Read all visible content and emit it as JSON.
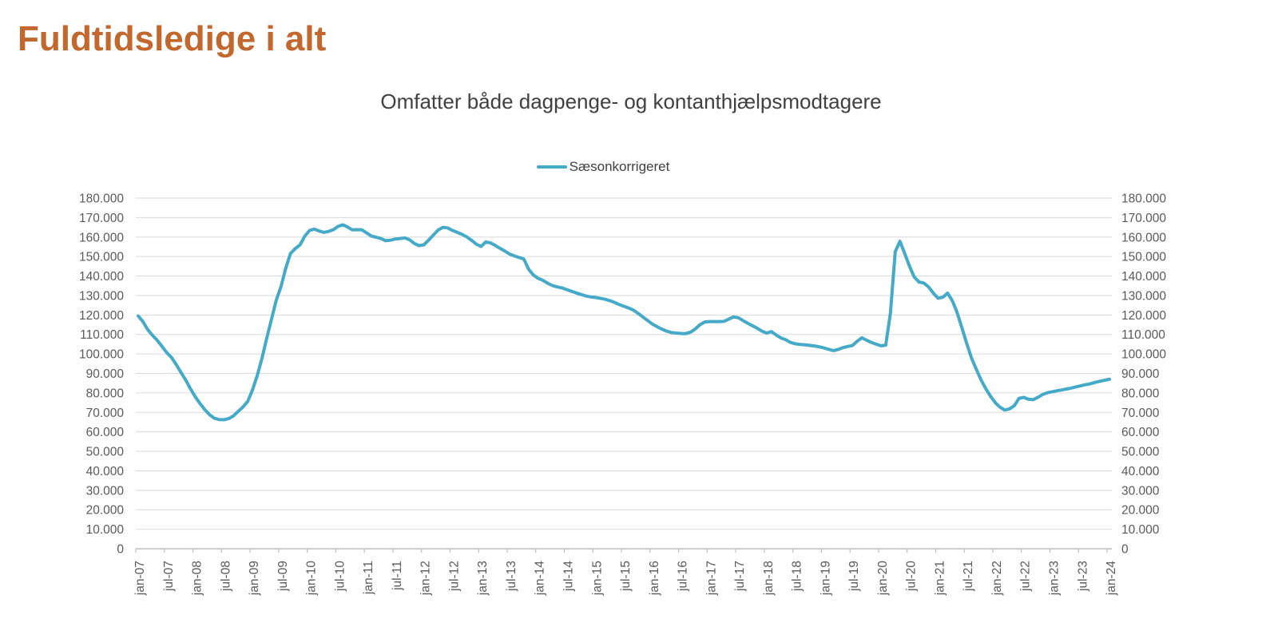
{
  "header": {
    "title": "Fuldtidsledige i alt",
    "title_color": "#C2672D"
  },
  "chart": {
    "title": "Omfatter både dagpenge- og kontanthjælpsmodtagere",
    "legend": {
      "label": "Sæsonkorrigeret",
      "marker": "line"
    },
    "colors": {
      "series": "#45A9C8",
      "gridline": "#D9D9D9",
      "axis": "#BFBFBF",
      "tick_label": "#595959",
      "title_text": "#404040"
    }
  },
  "chart_data": {
    "type": "line",
    "title": "Omfatter både dagpenge- og kontanthjælpsmodtagere",
    "ylabel": "",
    "xlabel": "",
    "ylim": [
      0,
      180000
    ],
    "grid": "horizontal",
    "legend_position": "top-center",
    "y_axis_sides": "both",
    "x_tick_labels": [
      "jan-07",
      "jul-07",
      "jan-08",
      "jul-08",
      "jan-09",
      "jul-09",
      "jan-10",
      "jul-10",
      "jan-11",
      "jul-11",
      "jan-12",
      "jul-12",
      "jan-13",
      "jul-13",
      "jan-14",
      "jul-14",
      "jan-15",
      "jul-15",
      "jan-16",
      "jul-16",
      "jan-17",
      "jul-17",
      "jan-18",
      "jul-18",
      "jan-19",
      "jul-19",
      "jan-20",
      "jul-20",
      "jan-21",
      "jul-21",
      "jan-22",
      "jul-22",
      "jan-23",
      "jul-23",
      "jan-24"
    ],
    "x_label_interval_months": 6,
    "y_ticks": [
      {
        "value": 0,
        "label": "0"
      },
      {
        "value": 10000,
        "label": "10.000"
      },
      {
        "value": 20000,
        "label": "20.000"
      },
      {
        "value": 30000,
        "label": "30.000"
      },
      {
        "value": 40000,
        "label": "40.000"
      },
      {
        "value": 50000,
        "label": "50.000"
      },
      {
        "value": 60000,
        "label": "60.000"
      },
      {
        "value": 70000,
        "label": "70.000"
      },
      {
        "value": 80000,
        "label": "80.000"
      },
      {
        "value": 90000,
        "label": "90.000"
      },
      {
        "value": 100000,
        "label": "100.000"
      },
      {
        "value": 110000,
        "label": "110.000"
      },
      {
        "value": 120000,
        "label": "120.000"
      },
      {
        "value": 130000,
        "label": "130.000"
      },
      {
        "value": 140000,
        "label": "140.000"
      },
      {
        "value": 150000,
        "label": "150.000"
      },
      {
        "value": 160000,
        "label": "160.000"
      },
      {
        "value": 170000,
        "label": "170.000"
      },
      {
        "value": 180000,
        "label": "180.000"
      }
    ],
    "series": [
      {
        "name": "Sæsonkorrigeret",
        "color": "#45A9C8",
        "frequency": "monthly",
        "x_start": "jan-07",
        "x_end": "jan-24",
        "values": [
          119500,
          116600,
          112500,
          109500,
          107000,
          103900,
          100700,
          98200,
          94500,
          90500,
          86500,
          82000,
          78000,
          74500,
          71400,
          68800,
          67000,
          66300,
          66200,
          66800,
          68200,
          70500,
          72700,
          75600,
          81400,
          88800,
          97800,
          108000,
          117800,
          127500,
          134600,
          144100,
          151600,
          154100,
          156000,
          160500,
          163400,
          164100,
          163100,
          162400,
          162900,
          163800,
          165500,
          166300,
          165100,
          163700,
          163800,
          163700,
          162100,
          160500,
          159900,
          159200,
          158100,
          158400,
          159000,
          159200,
          159600,
          158600,
          156700,
          155600,
          156000,
          158400,
          161000,
          163600,
          165000,
          164700,
          163400,
          162400,
          161400,
          160100,
          158400,
          156400,
          155200,
          157500,
          157000,
          155700,
          154200,
          152800,
          151300,
          150300,
          149500,
          148700,
          143500,
          140500,
          138800,
          137800,
          136300,
          135100,
          134400,
          133900,
          133000,
          132200,
          131300,
          130500,
          129800,
          129300,
          129000,
          128600,
          128100,
          127400,
          126500,
          125400,
          124500,
          123600,
          122500,
          120800,
          119000,
          117200,
          115300,
          114000,
          112700,
          111700,
          111000,
          110700,
          110500,
          110400,
          111200,
          112800,
          115000,
          116400,
          116600,
          116600,
          116600,
          116700,
          117800,
          119000,
          118600,
          117200,
          115800,
          114500,
          113200,
          111700,
          110700,
          111500,
          109700,
          108200,
          107300,
          105900,
          105200,
          104900,
          104700,
          104400,
          104100,
          103700,
          103100,
          102400,
          101700,
          102300,
          103200,
          103800,
          104300,
          106500,
          108300,
          107000,
          105900,
          105000,
          104200,
          104500,
          121000,
          152500,
          157800,
          151500,
          145000,
          139500,
          136900,
          136400,
          134400,
          131200,
          128600,
          129100,
          131200,
          127300,
          121200,
          113500,
          105500,
          98000,
          92300,
          86800,
          82300,
          78300,
          75000,
          72700,
          71200,
          71800,
          73400,
          77200,
          77700,
          76700,
          76500,
          77800,
          79200,
          80100,
          80600,
          81100,
          81500,
          82000,
          82500,
          83100,
          83700,
          84200,
          84700,
          85400,
          86000,
          86500,
          87000
        ]
      }
    ]
  }
}
